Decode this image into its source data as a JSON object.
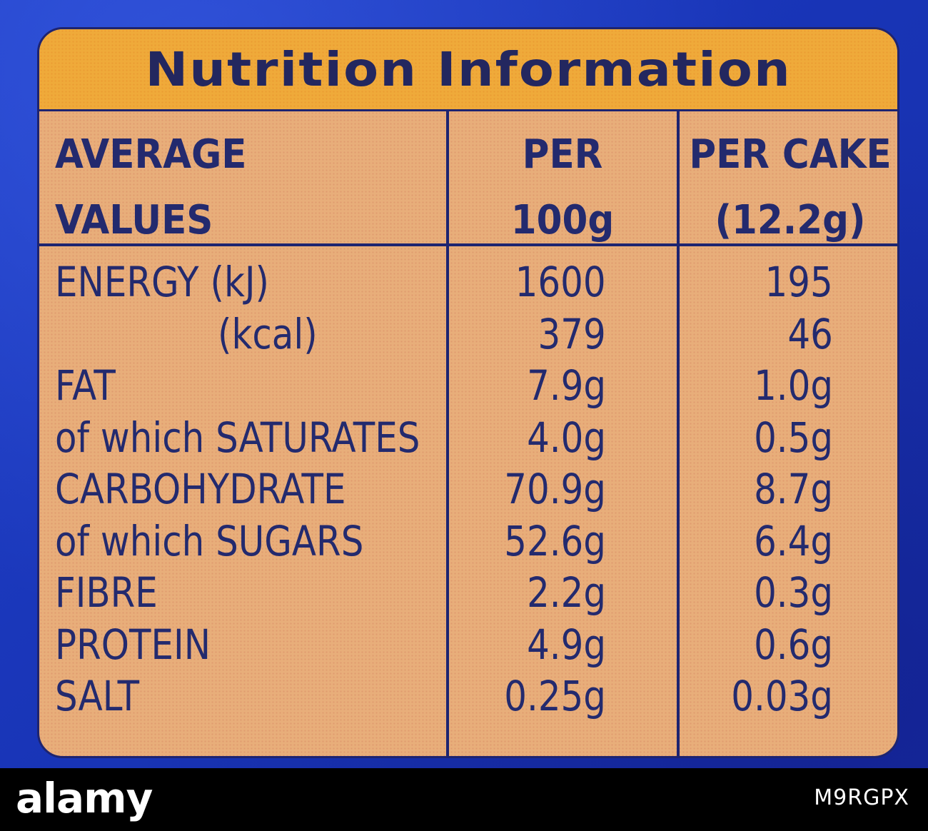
{
  "label": {
    "title": "Nutrition Information",
    "headers": {
      "col1": [
        "AVERAGE",
        "VALUES"
      ],
      "col2": [
        "PER",
        "100g"
      ],
      "col3": [
        "PER CAKE",
        "(12.2g)"
      ]
    },
    "rows": [
      {
        "name": "ENERGY (kJ)",
        "per100g": "1600",
        "perCake": "195",
        "indent": false
      },
      {
        "name": "(kcal)",
        "per100g": "379",
        "perCake": "46",
        "indent": true
      },
      {
        "name": "FAT",
        "per100g": "7.9g",
        "perCake": "1.0g",
        "indent": false
      },
      {
        "name": "of which SATURATES",
        "per100g": "4.0g",
        "perCake": "0.5g",
        "indent": false
      },
      {
        "name": "CARBOHYDRATE",
        "per100g": "70.9g",
        "perCake": "8.7g",
        "indent": false
      },
      {
        "name": "of which SUGARS",
        "per100g": "52.6g",
        "perCake": "6.4g",
        "indent": false
      },
      {
        "name": "FIBRE",
        "per100g": "2.2g",
        "perCake": "0.3g",
        "indent": false
      },
      {
        "name": "PROTEIN",
        "per100g": "4.9g",
        "perCake": "0.6g",
        "indent": false
      },
      {
        "name": "SALT",
        "per100g": "0.25g",
        "perCake": "0.03g",
        "indent": false
      }
    ]
  },
  "watermark": {
    "logo": "alamy",
    "image_id": "M9RGPX"
  },
  "colors": {
    "background_blue": "#1a2fb8",
    "label_tan": "#e8ae7a",
    "title_orange": "#efaa3a",
    "ink_navy": "#232a6e"
  }
}
